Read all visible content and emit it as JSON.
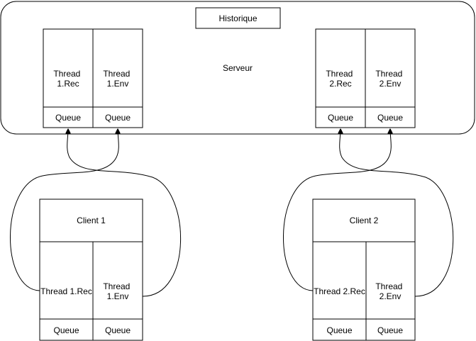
{
  "server": {
    "label": "Serveur",
    "history_label": "Historique",
    "thread_groups": [
      {
        "rec_label_lines": [
          "Thread",
          "1.Rec"
        ],
        "env_label_lines": [
          "Thread",
          "1.Env"
        ],
        "rec_queue_label": "Queue",
        "env_queue_label": "Queue"
      },
      {
        "rec_label_lines": [
          "Thread",
          "2.Rec"
        ],
        "env_label_lines": [
          "Thread",
          "2.Env"
        ],
        "rec_queue_label": "Queue",
        "env_queue_label": "Queue"
      }
    ]
  },
  "clients": [
    {
      "title": "Client 1",
      "rec_label_lines": [
        "Thread 1.Rec"
      ],
      "env_label_lines": [
        "Thread",
        "1.Env"
      ],
      "rec_queue_label": "Queue",
      "env_queue_label": "Queue"
    },
    {
      "title": "Client 2",
      "rec_label_lines": [
        "Thread 2.Rec"
      ],
      "env_label_lines": [
        "Thread",
        "2.Env"
      ],
      "rec_queue_label": "Queue",
      "env_queue_label": "Queue"
    }
  ],
  "colors": {
    "stroke": "#000000",
    "fill": "#ffffff",
    "text": "#000000"
  }
}
